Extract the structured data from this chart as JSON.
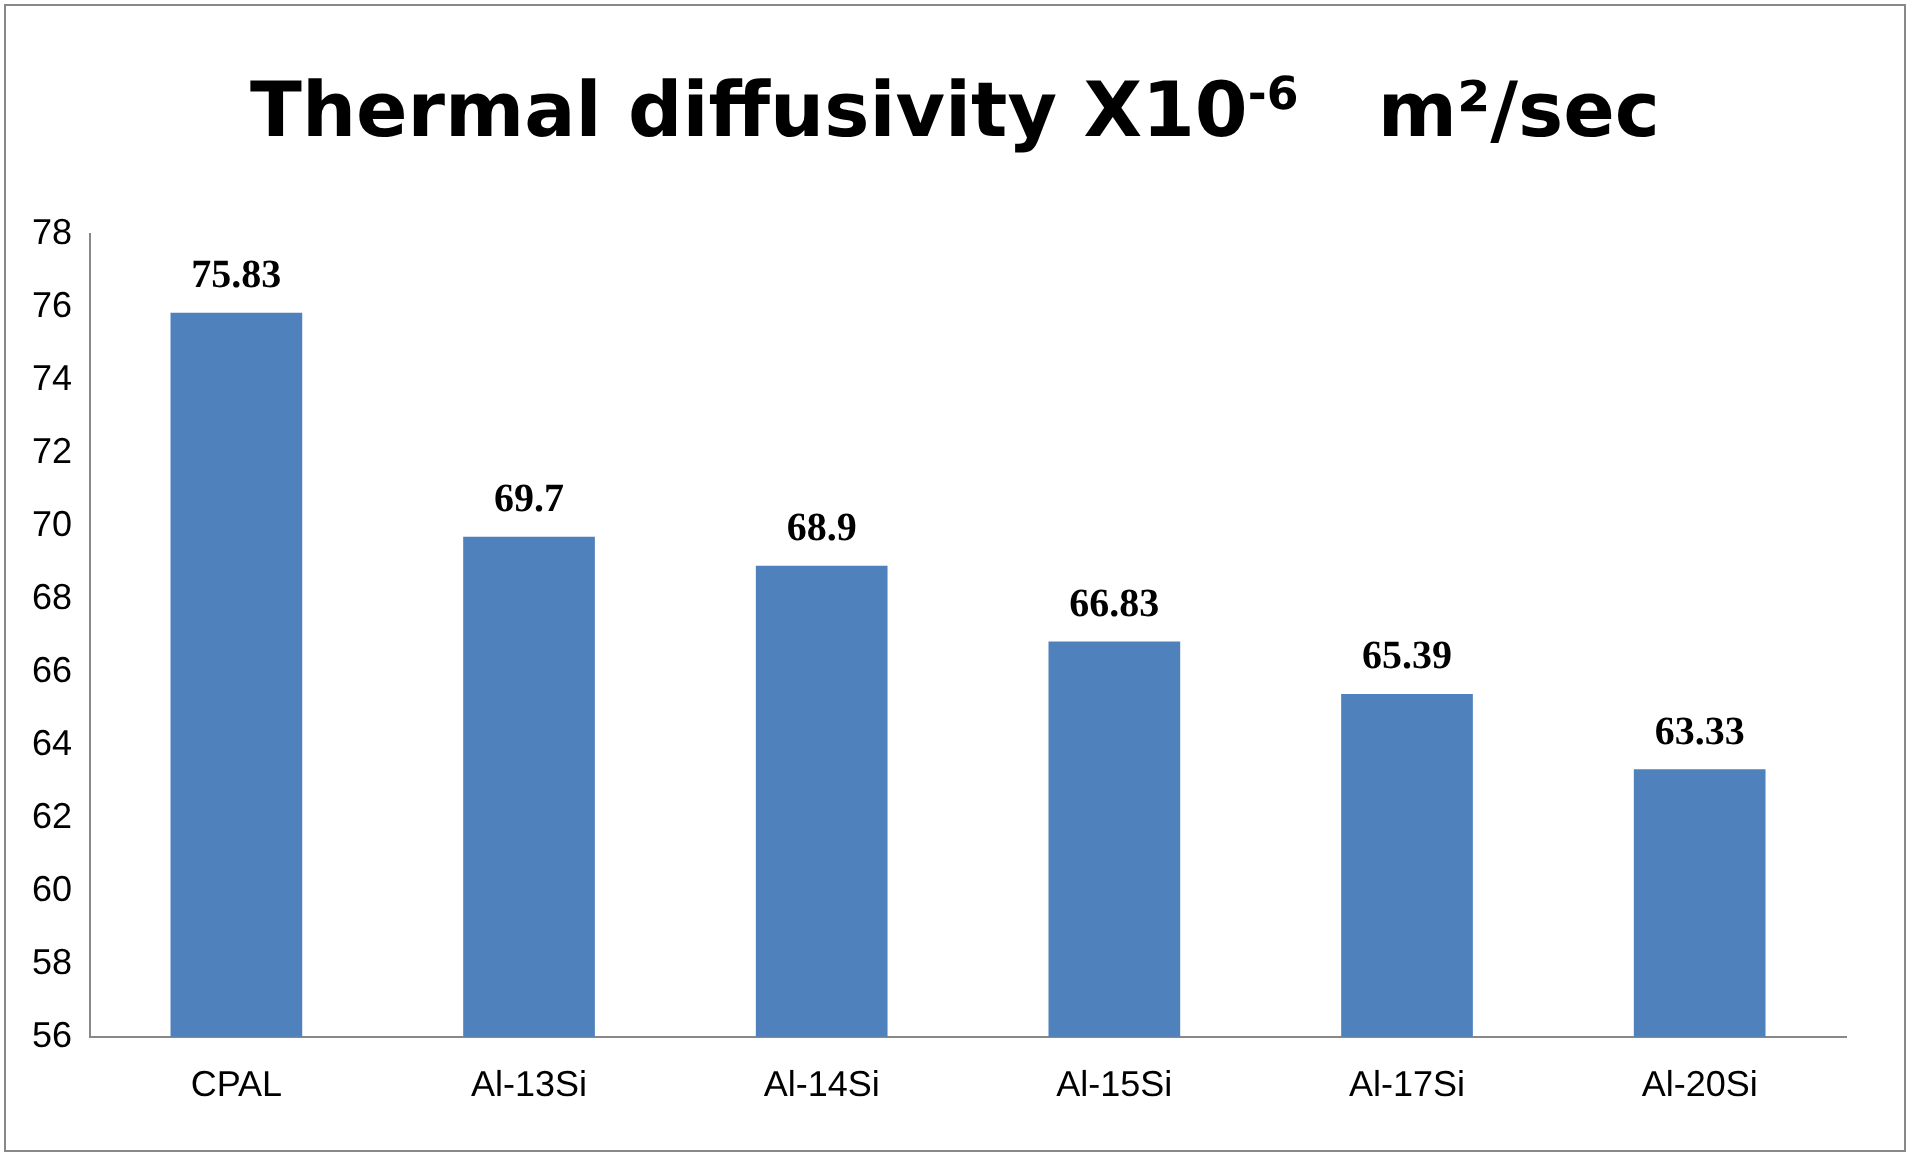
{
  "chart_data": {
    "type": "bar",
    "title": "Thermal diffusivity X10$^{-6}$   m²/sec",
    "categories": [
      "CPAL",
      "Al-13Si",
      "Al-14Si",
      "Al-15Si",
      "Al-17Si",
      "Al-20Si"
    ],
    "values": [
      75.83,
      69.7,
      68.9,
      66.83,
      65.39,
      63.33
    ],
    "color": "#4f81bd",
    "ylim": [
      56,
      78
    ],
    "yticks": [
      56,
      58,
      60,
      62,
      64,
      66,
      68,
      70,
      72,
      74,
      76,
      78
    ],
    "grid": false,
    "legend": false,
    "data_labels": true
  }
}
